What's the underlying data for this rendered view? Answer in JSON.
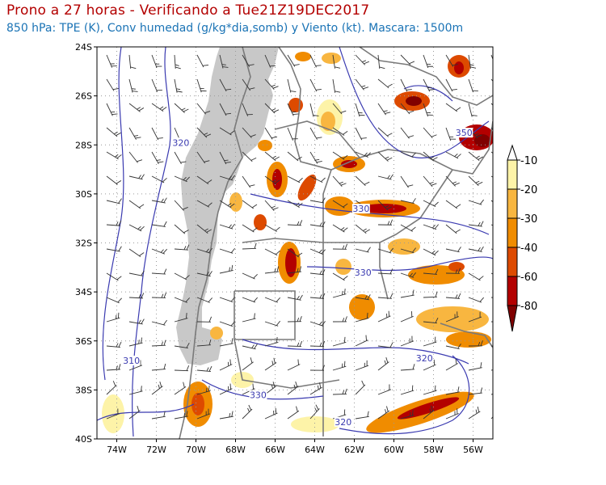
{
  "title": "Prono a 27 horas - Verificando a Tue21Z19DEC2017",
  "subtitle": "850 hPa: TPE (K), Conv humedad (g/kg*dia,somb) y Viento (kt). Mascara: 1500m",
  "colors": {
    "title": "#b30000",
    "subtitle": "#1a73b5",
    "contour": "#3a3ab0",
    "mask": "#c8c8c8",
    "borders": "#7a7a7a",
    "grid": "#9a9a9a"
  },
  "map": {
    "lat_range": [
      -40,
      -24
    ],
    "lon_range": [
      -75,
      -55
    ],
    "lat_ticks": [
      "24S",
      "26S",
      "28S",
      "30S",
      "32S",
      "34S",
      "36S",
      "38S",
      "40S"
    ],
    "lon_ticks": [
      "74W",
      "72W",
      "70W",
      "68W",
      "66W",
      "64W",
      "62W",
      "60W",
      "58W",
      "56W"
    ],
    "contour_labels": [
      {
        "text": "320",
        "lon": -70.8,
        "lat": -28
      },
      {
        "text": "330",
        "lon": -61.7,
        "lat": -30.7
      },
      {
        "text": "350",
        "lon": -56.5,
        "lat": -27.6
      },
      {
        "text": "330",
        "lon": -61.6,
        "lat": -33.3
      },
      {
        "text": "320",
        "lon": -58.5,
        "lat": -36.8
      },
      {
        "text": "310",
        "lon": -73.3,
        "lat": -36.9
      },
      {
        "text": "330",
        "lon": -66.9,
        "lat": -38.3
      },
      {
        "text": "320",
        "lon": -62.6,
        "lat": -39.4
      }
    ]
  },
  "legend": {
    "labels": [
      "-10",
      "-20",
      "-30",
      "-40",
      "-60",
      "-80"
    ],
    "colors": [
      "#ffffff",
      "#fdf3a8",
      "#f8b640",
      "#f08c00",
      "#dd4a00",
      "#b30000",
      "#800000"
    ]
  }
}
